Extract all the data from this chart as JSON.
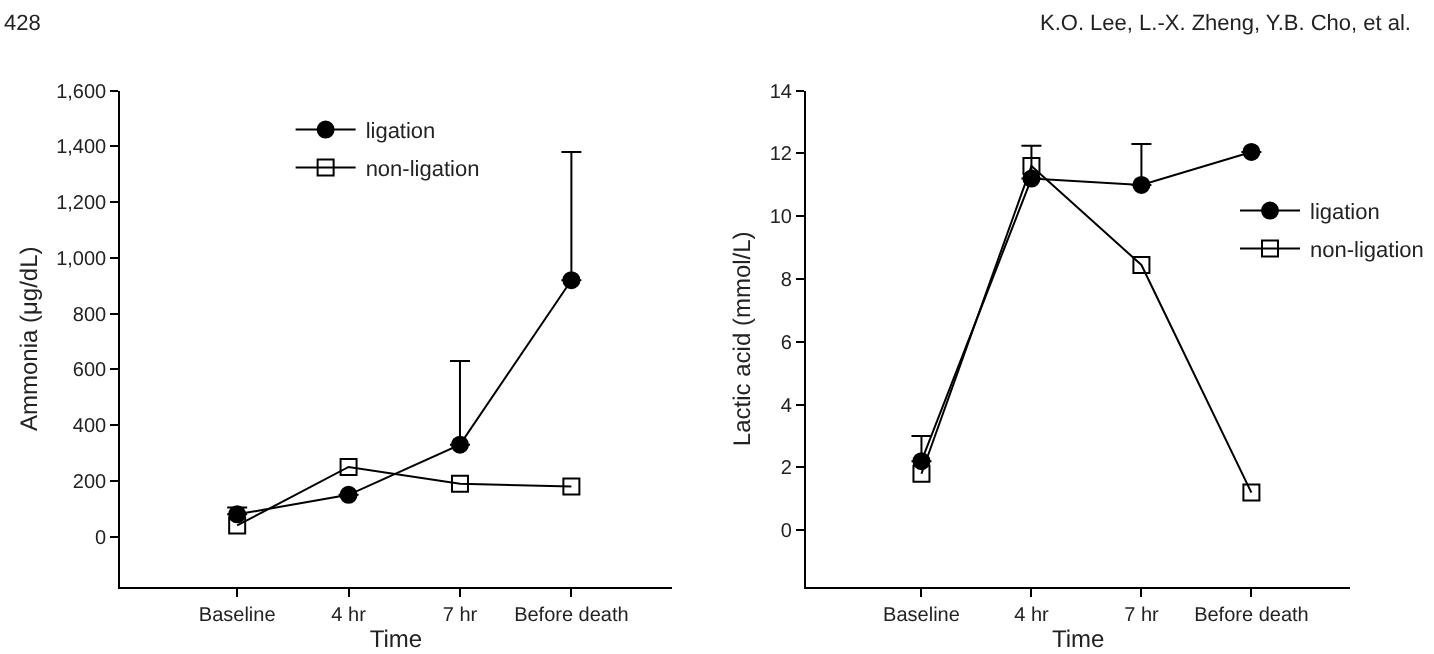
{
  "chart_data": [
    {
      "type": "line",
      "xlabel": "Time",
      "ylabel": "Ammonia (μg/dL)",
      "categories": [
        "Baseline",
        "4 hr",
        "7 hr",
        "Before death"
      ],
      "series": [
        {
          "name": "ligation",
          "color": "#000000",
          "marker": "circle",
          "values": [
            80,
            150,
            330,
            920
          ],
          "errors": [
            [
              80,
              105
            ],
            null,
            [
              330,
              630
            ],
            [
              920,
              1380
            ]
          ]
        },
        {
          "name": "non-ligation",
          "color": "#000000",
          "marker": "square",
          "values": [
            40,
            250,
            190,
            180
          ]
        }
      ],
      "ylim": [
        -180,
        1600
      ],
      "yticks": [
        {
          "value": 0,
          "label": "0"
        },
        {
          "value": 200,
          "label": "200"
        },
        {
          "value": 400,
          "label": "400"
        },
        {
          "value": 600,
          "label": "600"
        },
        {
          "value": 800,
          "label": "800"
        },
        {
          "value": 1000,
          "label": "1,000"
        },
        {
          "value": 1200,
          "label": "1,200"
        },
        {
          "value": 1400,
          "label": "1,400"
        },
        {
          "value": 1600,
          "label": "1,600"
        }
      ],
      "grid": false,
      "legend": "top left",
      "annotations": [
        "428"
      ]
    },
    {
      "type": "line",
      "xlabel": "Time",
      "ylabel": "Lactic acid (mmol/L)",
      "categories": [
        "Baseline",
        "4 hr",
        "7 hr",
        "Before death"
      ],
      "series": [
        {
          "name": "ligation",
          "color": "#000000",
          "marker": "circle",
          "values": [
            2.2,
            11.2,
            11.0,
            12.05
          ],
          "errors": [
            [
              2.2,
              3.0
            ],
            [
              11.2,
              12.25
            ],
            [
              11.0,
              12.3
            ],
            null
          ]
        },
        {
          "name": "non-ligation",
          "color": "#000000",
          "marker": "square",
          "values": [
            1.8,
            11.6,
            8.45,
            1.2
          ]
        }
      ],
      "ylim": [
        -1.8,
        14
      ],
      "yticks": [
        0,
        2,
        4,
        6,
        8,
        10,
        12,
        14
      ],
      "grid": false,
      "legend": "right",
      "annotations": [
        "K.O. Lee, L.-X. Zheng, Y.B. Cho, et al."
      ]
    }
  ]
}
